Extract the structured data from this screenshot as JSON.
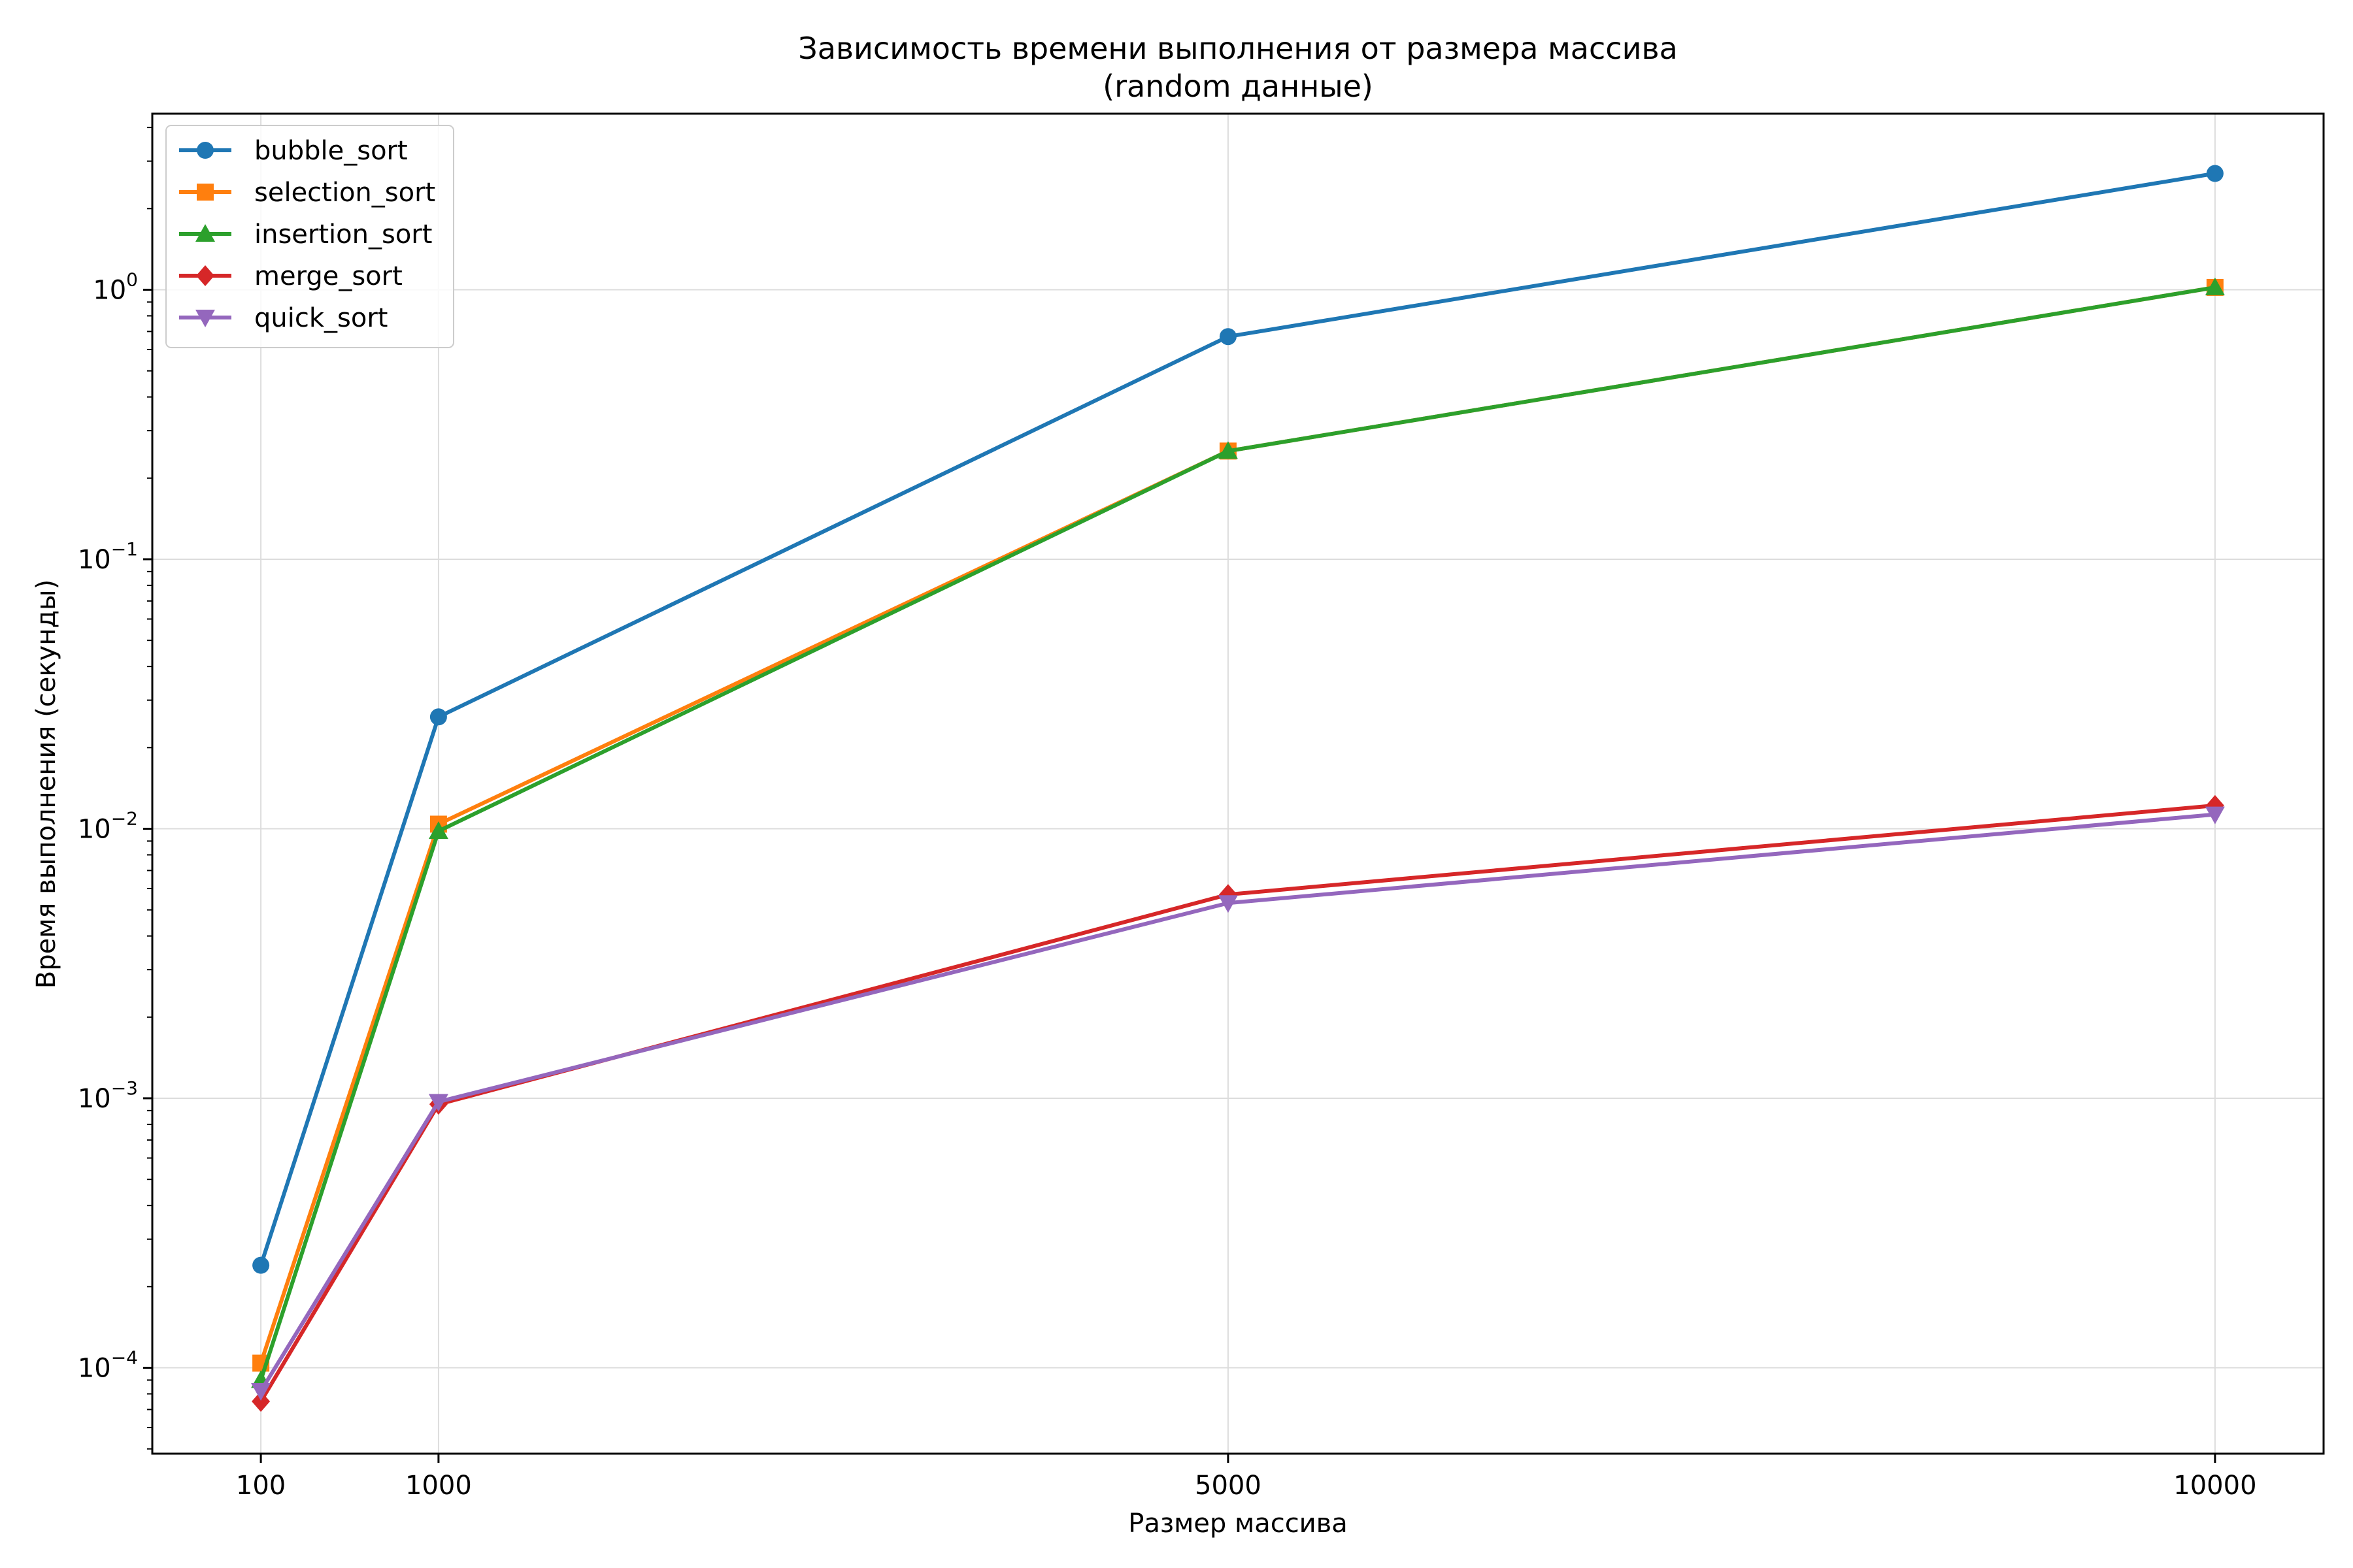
{
  "chart_data": {
    "type": "line",
    "title": "Зависимость времени выполнения от размера массива",
    "subtitle": "(random данные)",
    "xlabel": "Размер массива",
    "ylabel": "Время выполнения (секунды)",
    "x": [
      100,
      1000,
      5000,
      10000
    ],
    "x_ticks": [
      "100",
      "1000",
      "5000",
      "10000"
    ],
    "xlim": [
      -450,
      10550
    ],
    "y_scale": "log",
    "ylim": [
      4.8e-05,
      4.5
    ],
    "y_ticks": [
      {
        "value": 0.0001,
        "base": "10",
        "exp": "−4"
      },
      {
        "value": 0.001,
        "base": "10",
        "exp": "−3"
      },
      {
        "value": 0.01,
        "base": "10",
        "exp": "−2"
      },
      {
        "value": 0.1,
        "base": "10",
        "exp": "−1"
      },
      {
        "value": 1,
        "base": "10",
        "exp": "0"
      }
    ],
    "grid": true,
    "legend_position": "upper-left",
    "series": [
      {
        "name": "bubble_sort",
        "color": "#1f77b4",
        "marker": "circle",
        "values": [
          0.00024,
          0.026,
          0.67,
          2.7
        ]
      },
      {
        "name": "selection_sort",
        "color": "#ff7f0e",
        "marker": "square",
        "values": [
          0.000104,
          0.0104,
          0.252,
          1.02
        ]
      },
      {
        "name": "insertion_sort",
        "color": "#2ca02c",
        "marker": "triangle-up",
        "values": [
          9e-05,
          0.0098,
          0.252,
          1.02
        ]
      },
      {
        "name": "merge_sort",
        "color": "#d62728",
        "marker": "diamond",
        "values": [
          7.5e-05,
          0.00095,
          0.0057,
          0.0122
        ]
      },
      {
        "name": "quick_sort",
        "color": "#9467bd",
        "marker": "triangle-down",
        "values": [
          8.2e-05,
          0.00097,
          0.0053,
          0.0113
        ]
      }
    ]
  }
}
